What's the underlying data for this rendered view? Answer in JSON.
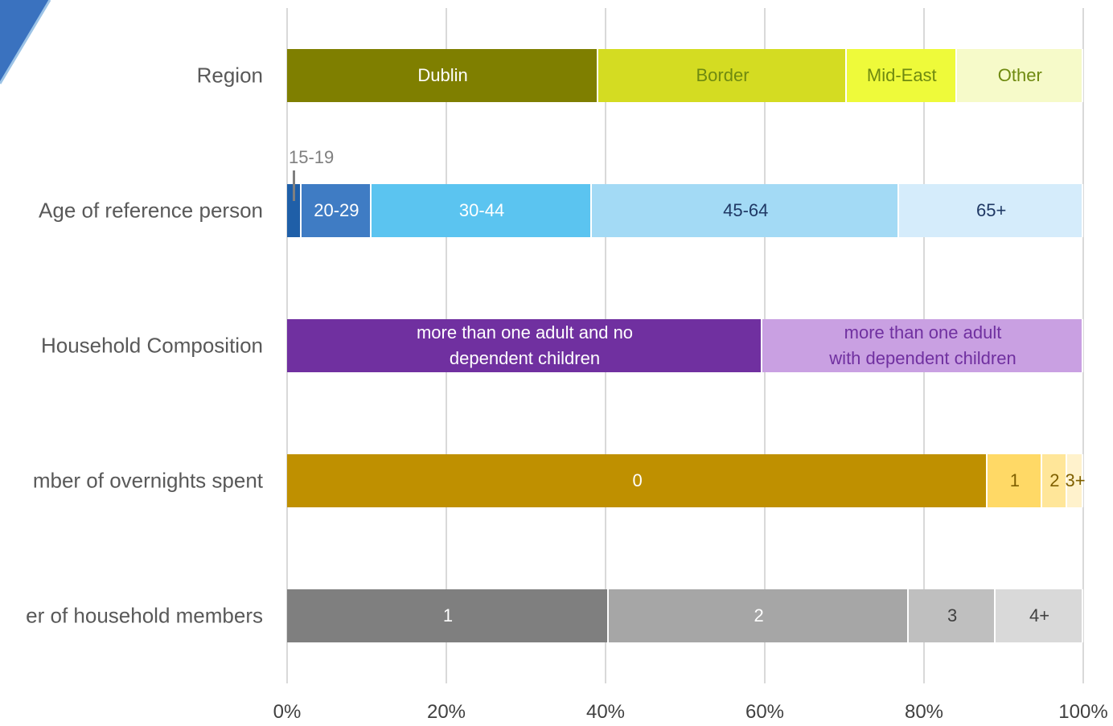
{
  "chart_data": {
    "type": "bar",
    "stacked": true,
    "orientation": "horizontal",
    "categories": [
      "Region",
      "Age of reference person",
      "Household Composition",
      "mber of overnights spent",
      "er of household members"
    ],
    "segments": [
      [
        {
          "name": "Dublin",
          "value": 39.1,
          "color": "#7f7f00",
          "text_color": "#ffffff"
        },
        {
          "name": "Border",
          "value": 31.2,
          "color": "#d4dc22",
          "text_color": "#6f8a10"
        },
        {
          "name": "Mid-East",
          "value": 13.8,
          "color": "#eefa3a",
          "text_color": "#6f8a10"
        },
        {
          "name": "Other",
          "value": 15.9,
          "color": "#f6fac9",
          "text_color": "#6f8a10"
        }
      ],
      [
        {
          "name": "15-19",
          "value": 1.8,
          "color": "#1f5fa8",
          "text_color": "#7f7f7f",
          "callout": true
        },
        {
          "name": "20-29",
          "value": 8.8,
          "color": "#3f7cc4",
          "text_color": "#ffffff"
        },
        {
          "name": "30-44",
          "value": 27.7,
          "color": "#5bc4f0",
          "text_color": "#ffffff"
        },
        {
          "name": "45-64",
          "value": 38.6,
          "color": "#a3daf5",
          "text_color": "#1f3864"
        },
        {
          "name": "65+",
          "value": 23.1,
          "color": "#d5ecfb",
          "text_color": "#1f3864"
        }
      ],
      [
        {
          "name": "more than one adult and no dependent children",
          "value": 59.7,
          "color": "#7030a0",
          "text_color": "#ffffff"
        },
        {
          "name": "more than one adult with dependent children",
          "value": 40.3,
          "color": "#c9a0e2",
          "text_color": "#7030a0"
        }
      ],
      [
        {
          "name": "0",
          "value": 88.0,
          "color": "#bf9000",
          "text_color": "#ffffff"
        },
        {
          "name": "1",
          "value": 6.8,
          "color": "#ffd966",
          "text_color": "#7f6000"
        },
        {
          "name": "2",
          "value": 3.2,
          "color": "#ffe699",
          "text_color": "#7f6000"
        },
        {
          "name": "3+",
          "value": 2.0,
          "color": "#fff2cc",
          "text_color": "#7f6000"
        }
      ],
      [
        {
          "name": "1",
          "value": 40.4,
          "color": "#7f7f7f",
          "text_color": "#ffffff"
        },
        {
          "name": "2",
          "value": 37.7,
          "color": "#a6a6a6",
          "text_color": "#ffffff"
        },
        {
          "name": "3",
          "value": 10.9,
          "color": "#bfbfbf",
          "text_color": "#404040"
        },
        {
          "name": "4+",
          "value": 11.0,
          "color": "#d9d9d9",
          "text_color": "#404040"
        }
      ]
    ],
    "xlim": [
      0,
      100
    ],
    "xticks": [
      {
        "value": 0,
        "label": "0%"
      },
      {
        "value": 20,
        "label": "20%"
      },
      {
        "value": 40,
        "label": "40%"
      },
      {
        "value": 60,
        "label": "60%"
      },
      {
        "value": 80,
        "label": "80%"
      },
      {
        "value": 100,
        "label": "100%"
      }
    ],
    "grid": true
  }
}
